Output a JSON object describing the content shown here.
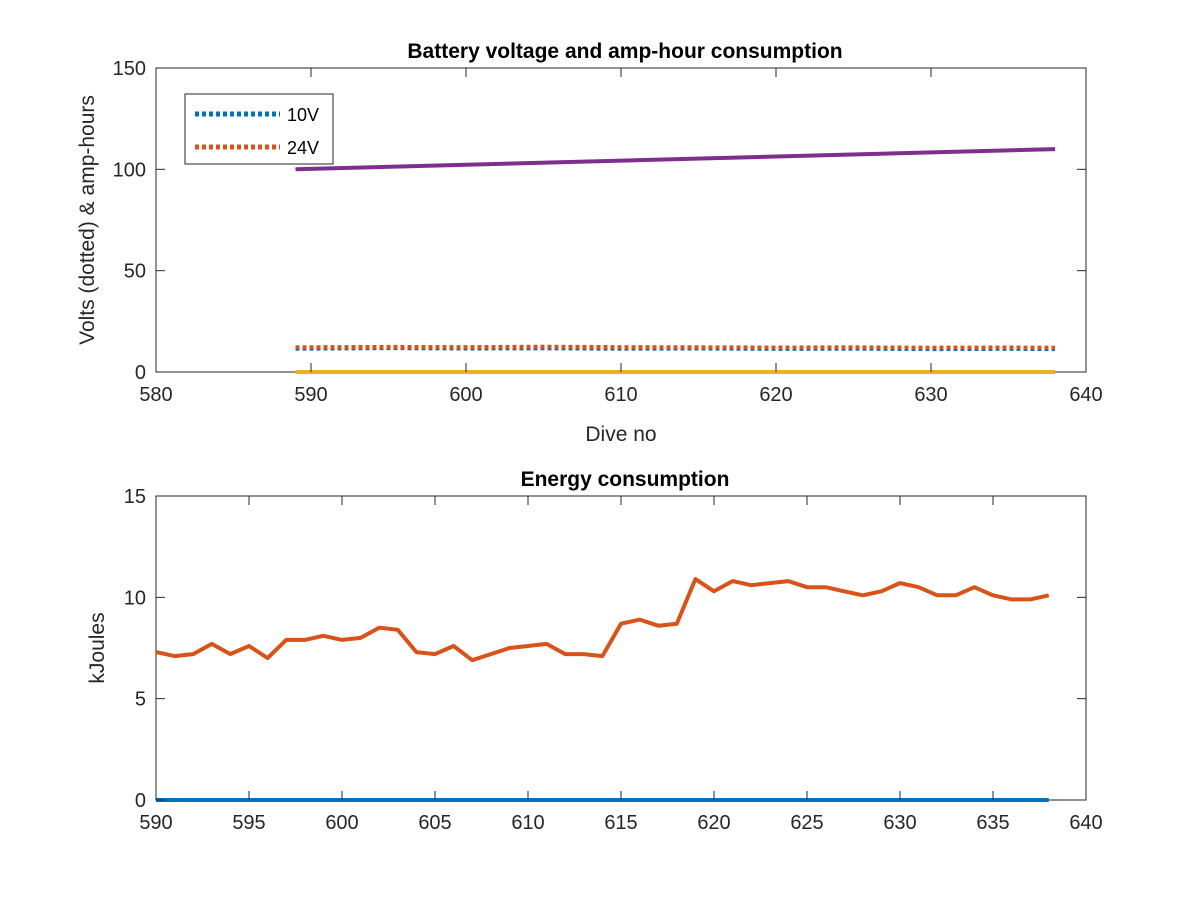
{
  "chart_data": [
    {
      "type": "line",
      "title": "Battery voltage and amp-hour consumption",
      "xlabel": "Dive no",
      "ylabel": "Volts (dotted) & amp-hours",
      "xlim": [
        580,
        640
      ],
      "ylim": [
        0,
        150
      ],
      "xticks": [
        "580",
        "590",
        "600",
        "610",
        "620",
        "630",
        "640"
      ],
      "yticks": [
        "0",
        "50",
        "100",
        "150"
      ],
      "grid": false,
      "legend_position": "top-left",
      "series": [
        {
          "name": "10V",
          "style": "dotted",
          "color": "#0072BD",
          "x": [
            589,
            595,
            600,
            605,
            610,
            615,
            620,
            625,
            630,
            635,
            638
          ],
          "y": [
            11.5,
            11.8,
            11.6,
            11.7,
            11.5,
            11.6,
            11.4,
            11.5,
            11.3,
            11.4,
            11.3
          ]
        },
        {
          "name": "24V",
          "style": "dotted",
          "color": "#D95319",
          "x": [
            589,
            595,
            600,
            605,
            610,
            615,
            620,
            625,
            630,
            635,
            638
          ],
          "y": [
            12.2,
            12.4,
            12.3,
            12.5,
            12.3,
            12.2,
            12.1,
            12.2,
            12.0,
            12.1,
            12.0
          ]
        },
        {
          "style": "solid",
          "color": "#7E2F8E",
          "x": [
            589,
            638
          ],
          "y": [
            100,
            110
          ]
        },
        {
          "style": "solid",
          "color": "#EDB120",
          "x": [
            589,
            638
          ],
          "y": [
            0,
            0
          ]
        }
      ]
    },
    {
      "type": "line",
      "title": "Energy consumption",
      "xlabel": "",
      "ylabel": "kJoules",
      "xlim": [
        590,
        640
      ],
      "ylim": [
        0,
        15
      ],
      "xticks": [
        "590",
        "595",
        "600",
        "605",
        "610",
        "615",
        "620",
        "625",
        "630",
        "635",
        "640"
      ],
      "yticks": [
        "0",
        "5",
        "10",
        "15"
      ],
      "grid": false,
      "series": [
        {
          "style": "solid",
          "color": "#0072BD",
          "x": [
            590,
            638
          ],
          "y": [
            0,
            0
          ]
        },
        {
          "style": "solid",
          "color": "#D95319",
          "x": [
            590,
            591,
            592,
            593,
            594,
            595,
            596,
            597,
            598,
            599,
            600,
            601,
            602,
            603,
            604,
            605,
            606,
            607,
            608,
            609,
            610,
            611,
            612,
            613,
            614,
            615,
            616,
            617,
            618,
            619,
            620,
            621,
            622,
            623,
            624,
            625,
            626,
            627,
            628,
            629,
            630,
            631,
            632,
            633,
            634,
            635,
            636,
            637,
            638
          ],
          "y": [
            7.3,
            7.1,
            7.2,
            7.7,
            7.2,
            7.6,
            7.0,
            7.9,
            7.9,
            8.1,
            7.9,
            8.0,
            8.5,
            8.4,
            7.3,
            7.2,
            7.6,
            6.9,
            7.2,
            7.5,
            7.6,
            7.7,
            7.2,
            7.2,
            7.1,
            8.7,
            8.9,
            8.6,
            8.7,
            10.9,
            10.3,
            10.8,
            10.6,
            10.7,
            10.8,
            10.5,
            10.5,
            10.3,
            10.1,
            10.3,
            10.7,
            10.5,
            10.1,
            10.1,
            10.5,
            10.1,
            9.9,
            9.9,
            10.1
          ]
        }
      ]
    }
  ]
}
